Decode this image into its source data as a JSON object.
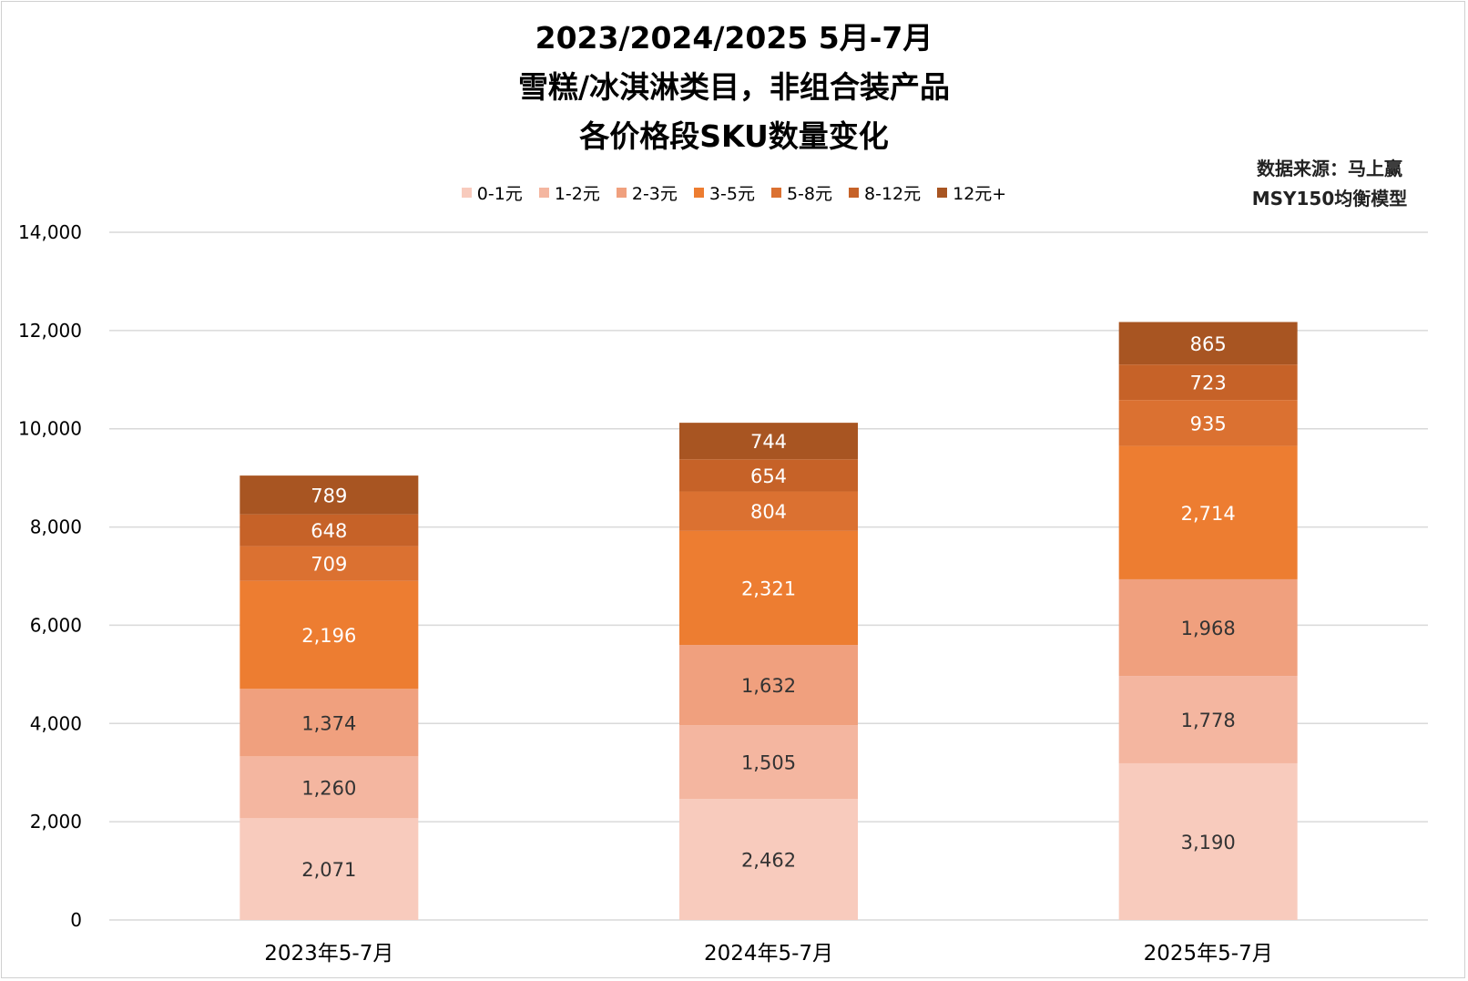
{
  "chart_data": {
    "type": "bar",
    "stacked": true,
    "title_lines": [
      "2023/2024/2025 5月-7月",
      "雪糕/冰淇淋类目，非组合装产品",
      "各价格段SKU数量变化"
    ],
    "source_lines": [
      "数据来源：马上赢",
      "MSY150均衡模型"
    ],
    "categories": [
      "2023年5-7月",
      "2024年5-7月",
      "2025年5-7月"
    ],
    "ylim": [
      0,
      14000
    ],
    "yticks": [
      0,
      2000,
      4000,
      6000,
      8000,
      10000,
      12000,
      14000
    ],
    "ytick_labels": [
      "0",
      "2,000",
      "4,000",
      "6,000",
      "8,000",
      "10,000",
      "12,000",
      "14,000"
    ],
    "legend_position": "top-center",
    "grid": true,
    "series": [
      {
        "name": "0-1元",
        "color": "#f8cbbd",
        "label_color": "#333333",
        "values": [
          2071,
          2462,
          3190
        ],
        "labels": [
          "2,071",
          "2,462",
          "3,190"
        ]
      },
      {
        "name": "1-2元",
        "color": "#f4b6a0",
        "label_color": "#333333",
        "values": [
          1260,
          1505,
          1778
        ],
        "labels": [
          "1,260",
          "1,505",
          "1,778"
        ]
      },
      {
        "name": "2-3元",
        "color": "#f0a07e",
        "label_color": "#333333",
        "values": [
          1374,
          1632,
          1968
        ],
        "labels": [
          "1,374",
          "1,632",
          "1,968"
        ]
      },
      {
        "name": "3-5元",
        "color": "#ed7d31",
        "label_color": "#ffffff",
        "values": [
          2196,
          2321,
          2714
        ],
        "labels": [
          "2,196",
          "2,321",
          "2,714"
        ]
      },
      {
        "name": "5-8元",
        "color": "#db7131",
        "label_color": "#ffffff",
        "values": [
          709,
          804,
          935
        ],
        "labels": [
          "709",
          "804",
          "935"
        ]
      },
      {
        "name": "8-12元",
        "color": "#c66228",
        "label_color": "#ffffff",
        "values": [
          648,
          654,
          723
        ],
        "labels": [
          "648",
          "654",
          "723"
        ]
      },
      {
        "name": "12元+",
        "color": "#a85522",
        "label_color": "#ffffff",
        "values": [
          789,
          744,
          865
        ],
        "labels": [
          "789",
          "744",
          "865"
        ]
      }
    ]
  }
}
